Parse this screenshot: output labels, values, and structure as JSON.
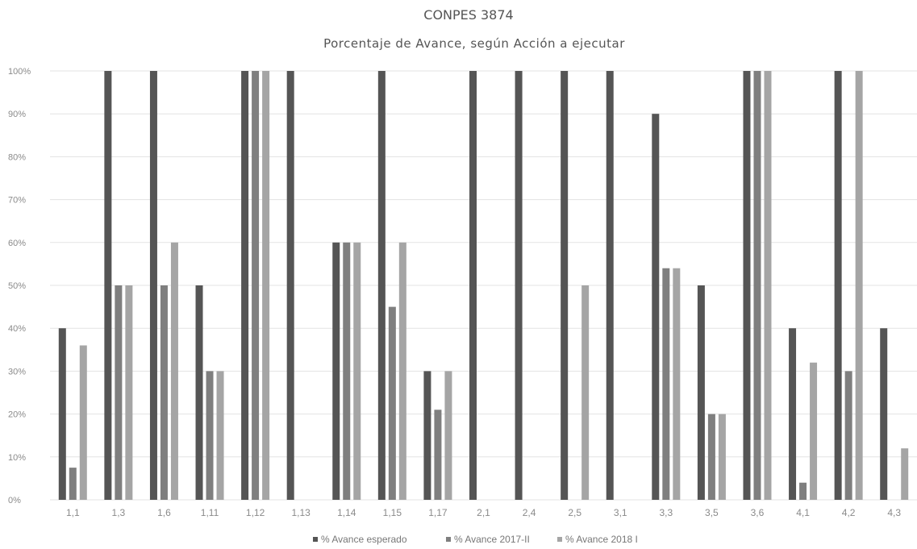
{
  "chart_data": {
    "type": "bar",
    "title": "CONPES 3874",
    "subtitle": "Porcentaje de Avance, según Acción a ejecutar",
    "categories": [
      "1,1",
      "1,3",
      "1,6",
      "1,11",
      "1,12",
      "1,13",
      "1,14",
      "1,15",
      "1,17",
      "2,1",
      "2,4",
      "2,5",
      "3,1",
      "3,3",
      "3,5",
      "3,6",
      "4,1",
      "4,2",
      "4,3"
    ],
    "series": [
      {
        "name": "% Avance esperado",
        "color": "#555555",
        "values": [
          40,
          100,
          100,
          50,
          100,
          100,
          60,
          100,
          30,
          100,
          100,
          100,
          100,
          90,
          50,
          100,
          40,
          100,
          40
        ]
      },
      {
        "name": "% Avance 2017-II",
        "color": "#7f7f7f",
        "values": [
          7.5,
          50,
          50,
          30,
          100,
          0,
          60,
          45,
          21,
          0,
          0,
          0,
          0,
          54,
          20,
          100,
          4,
          30,
          0
        ]
      },
      {
        "name": "% Avance 2018 I",
        "color": "#a5a5a5",
        "values": [
          36,
          50,
          60,
          30,
          100,
          0,
          60,
          60,
          30,
          0,
          0,
          50,
          0,
          54,
          20,
          100,
          32,
          100,
          12
        ]
      }
    ],
    "ylim": [
      0,
      100
    ],
    "yticks": [
      "0%",
      "10%",
      "20%",
      "30%",
      "40%",
      "50%",
      "60%",
      "70%",
      "80%",
      "90%",
      "100%"
    ],
    "grid": true,
    "legend_position": "bottom"
  }
}
